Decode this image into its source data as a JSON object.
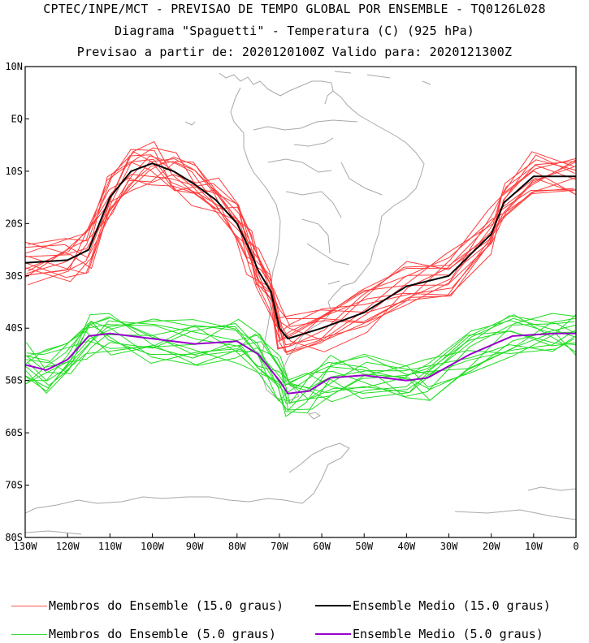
{
  "header": {
    "line1": "CPTEC/INPE/MCT - PREVISAO DE TEMPO GLOBAL POR ENSEMBLE - TQ0126L028",
    "line2": "Diagrama \"Spaguetti\" - Temperatura (C) (925 hPa)",
    "line3": "Previsao a partir de: 2020120100Z  Valido para: 2020121300Z"
  },
  "map": {
    "lon_range": [
      -130,
      0
    ],
    "lat_range": [
      -80,
      10
    ],
    "coastline_color": "#a8a8a8",
    "lat_ticks": [
      {
        "lat": 10,
        "label": "10N"
      },
      {
        "lat": 0,
        "label": "EQ"
      },
      {
        "lat": -10,
        "label": "10S"
      },
      {
        "lat": -20,
        "label": "20S"
      },
      {
        "lat": -30,
        "label": "30S"
      },
      {
        "lat": -40,
        "label": "40S"
      },
      {
        "lat": -50,
        "label": "50S"
      },
      {
        "lat": -60,
        "label": "60S"
      },
      {
        "lat": -70,
        "label": "70S"
      },
      {
        "lat": -80,
        "label": "80S"
      }
    ],
    "lon_ticks": [
      {
        "lon": -130,
        "label": "130W"
      },
      {
        "lon": -120,
        "label": "120W"
      },
      {
        "lon": -110,
        "label": "110W"
      },
      {
        "lon": -100,
        "label": "100W"
      },
      {
        "lon": -90,
        "label": "90W"
      },
      {
        "lon": -80,
        "label": "80W"
      },
      {
        "lon": -70,
        "label": "70W"
      },
      {
        "lon": -60,
        "label": "60W"
      },
      {
        "lon": -50,
        "label": "50W"
      },
      {
        "lon": -40,
        "label": "40W"
      },
      {
        "lon": -30,
        "label": "30W"
      },
      {
        "lon": -20,
        "label": "20W"
      },
      {
        "lon": -10,
        "label": "10W"
      },
      {
        "lon": 0,
        "label": "0"
      }
    ]
  },
  "series": [
    {
      "key": "members15",
      "color": "#ff3b3b",
      "member_count": 15,
      "line": [
        [
          -130,
          -27.5
        ],
        [
          -120,
          -27
        ],
        [
          -115,
          -25
        ],
        [
          -110,
          -15
        ],
        [
          -105,
          -10
        ],
        [
          -100,
          -8.5
        ],
        [
          -95,
          -10
        ],
        [
          -90,
          -12.5
        ],
        [
          -85,
          -15.5
        ],
        [
          -80,
          -20
        ],
        [
          -77,
          -25
        ],
        [
          -75,
          -29
        ],
        [
          -72,
          -33
        ],
        [
          -70,
          -40
        ],
        [
          -68,
          -42
        ],
        [
          -60,
          -40
        ],
        [
          -50,
          -37
        ],
        [
          -40,
          -32
        ],
        [
          -30,
          -30
        ],
        [
          -20,
          -22
        ],
        [
          -17,
          -16
        ],
        [
          -10,
          -11
        ],
        [
          0,
          -11
        ]
      ]
    },
    {
      "key": "mean15",
      "color": "#000000",
      "member_count": 1,
      "line": [
        [
          -130,
          -27.5
        ],
        [
          -120,
          -27
        ],
        [
          -115,
          -25
        ],
        [
          -110,
          -15
        ],
        [
          -105,
          -10
        ],
        [
          -100,
          -8.5
        ],
        [
          -95,
          -10
        ],
        [
          -90,
          -12.5
        ],
        [
          -85,
          -15.5
        ],
        [
          -80,
          -20
        ],
        [
          -77,
          -25
        ],
        [
          -75,
          -29
        ],
        [
          -72,
          -33
        ],
        [
          -70,
          -40
        ],
        [
          -68,
          -42
        ],
        [
          -60,
          -40
        ],
        [
          -50,
          -37
        ],
        [
          -40,
          -32
        ],
        [
          -30,
          -30
        ],
        [
          -20,
          -22
        ],
        [
          -17,
          -16
        ],
        [
          -10,
          -11
        ],
        [
          0,
          -11
        ]
      ]
    },
    {
      "key": "members5",
      "color": "#22dd22",
      "member_count": 15,
      "line": [
        [
          -130,
          -47
        ],
        [
          -125,
          -48
        ],
        [
          -120,
          -46
        ],
        [
          -115,
          -41.5
        ],
        [
          -110,
          -41
        ],
        [
          -100,
          -42
        ],
        [
          -90,
          -43
        ],
        [
          -80,
          -42.5
        ],
        [
          -75,
          -45
        ],
        [
          -70,
          -50
        ],
        [
          -68,
          -52.5
        ],
        [
          -63,
          -52
        ],
        [
          -58,
          -49.5
        ],
        [
          -50,
          -49
        ],
        [
          -40,
          -50
        ],
        [
          -35,
          -49.5
        ],
        [
          -25,
          -45
        ],
        [
          -15,
          -41.5
        ],
        [
          -5,
          -41
        ],
        [
          0,
          -41
        ]
      ]
    },
    {
      "key": "mean5",
      "color": "#9900cc",
      "member_count": 1,
      "line": [
        [
          -130,
          -47
        ],
        [
          -125,
          -48
        ],
        [
          -120,
          -46
        ],
        [
          -115,
          -41.5
        ],
        [
          -110,
          -41
        ],
        [
          -100,
          -42
        ],
        [
          -90,
          -43
        ],
        [
          -80,
          -42.5
        ],
        [
          -75,
          -45
        ],
        [
          -70,
          -50
        ],
        [
          -68,
          -52.5
        ],
        [
          -63,
          -52
        ],
        [
          -58,
          -49.5
        ],
        [
          -50,
          -49
        ],
        [
          -40,
          -50
        ],
        [
          -35,
          -49.5
        ],
        [
          -25,
          -45
        ],
        [
          -15,
          -41.5
        ],
        [
          -5,
          -41
        ],
        [
          0,
          -41
        ]
      ]
    }
  ],
  "legend": {
    "members15": {
      "label": "Membros do Ensemble (15.0 graus)",
      "color": "#ff5555"
    },
    "mean15": {
      "label": "Ensemble Medio (15.0 graus)",
      "color": "#000000"
    },
    "members5": {
      "label": "Membros do Ensemble (5.0 graus)",
      "color": "#33dd33"
    },
    "mean5": {
      "label": "Ensemble Medio (5.0 graus)",
      "color": "#9900cc"
    }
  }
}
